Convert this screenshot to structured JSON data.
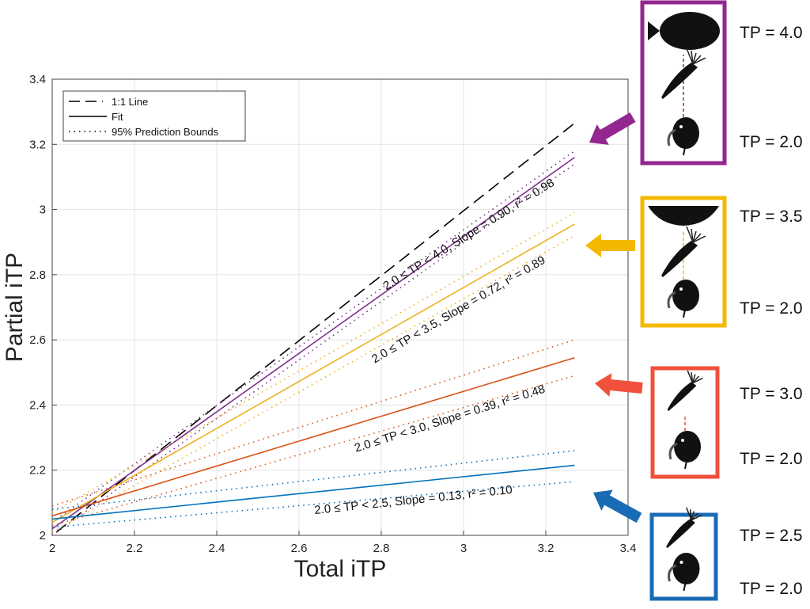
{
  "chart_data": {
    "type": "line",
    "xlabel": "Total iTP",
    "ylabel": "Partial iTP",
    "xlim": [
      2,
      3.4
    ],
    "ylim": [
      2,
      3.4
    ],
    "xticks": [
      "2",
      "2.2",
      "2.4",
      "2.6",
      "2.8",
      "3",
      "3.2",
      "3.4"
    ],
    "yticks": [
      "2",
      "2.2",
      "2.4",
      "2.6",
      "2.8",
      "3",
      "3.2",
      "3.4"
    ],
    "grid": true,
    "legend": {
      "placement": "top-left",
      "entries": [
        "1:1 Line",
        "Fit",
        "95% Prediction Bounds"
      ]
    },
    "one_to_one": {
      "x": [
        2.01,
        3.27
      ],
      "y": [
        2.01,
        3.265
      ],
      "color": "#000000"
    },
    "series": [
      {
        "name": "2.0 ≤ TP < 4.0",
        "color": "#7E2F8E",
        "x": [
          2.0,
          3.27
        ],
        "fit": [
          2.02,
          3.16
        ],
        "upper": [
          2.04,
          3.18
        ],
        "lower": [
          2.0,
          3.14
        ],
        "annotation": "2.0 ≤ TP < 4.0, Slope = 0.90, r² = 0.98"
      },
      {
        "name": "2.0 ≤ TP < 3.5",
        "color": "#EDB120",
        "x": [
          2.0,
          3.27
        ],
        "fit": [
          2.04,
          2.955
        ],
        "upper": [
          2.07,
          2.99
        ],
        "lower": [
          2.01,
          2.92
        ],
        "annotation": "2.0 ≤ TP < 3.5, Slope = 0.72, r² = 0.89"
      },
      {
        "name": "2.0 ≤ TP < 3.0",
        "color": "#D95319",
        "x": [
          2.0,
          3.27
        ],
        "fit": [
          2.06,
          2.545
        ],
        "upper": [
          2.09,
          2.6
        ],
        "lower": [
          2.03,
          2.49
        ],
        "annotation": "2.0 ≤ TP < 3.0, Slope = 0.39, r² = 0.48"
      },
      {
        "name": "2.0 ≤ TP < 2.5",
        "color": "#0072BD",
        "x": [
          2.0,
          3.27
        ],
        "fit": [
          2.05,
          2.215
        ],
        "upper": [
          2.08,
          2.26
        ],
        "lower": [
          2.025,
          2.165
        ],
        "annotation": "2.0 ≤ TP < 2.5, Slope = 0.13, r² = 0.10"
      }
    ]
  },
  "panels": [
    {
      "color": "#93278F",
      "top_label": "TP = 4.0",
      "bottom_label": "TP = 2.0"
    },
    {
      "color": "#F5B800",
      "top_label": "TP = 3.5",
      "bottom_label": "TP = 2.0"
    },
    {
      "color": "#F0503C",
      "top_label": "TP = 3.0",
      "bottom_label": "TP = 2.0"
    },
    {
      "color": "#1A6BB5",
      "top_label": "TP = 2.5",
      "bottom_label": "TP = 2.0"
    }
  ]
}
